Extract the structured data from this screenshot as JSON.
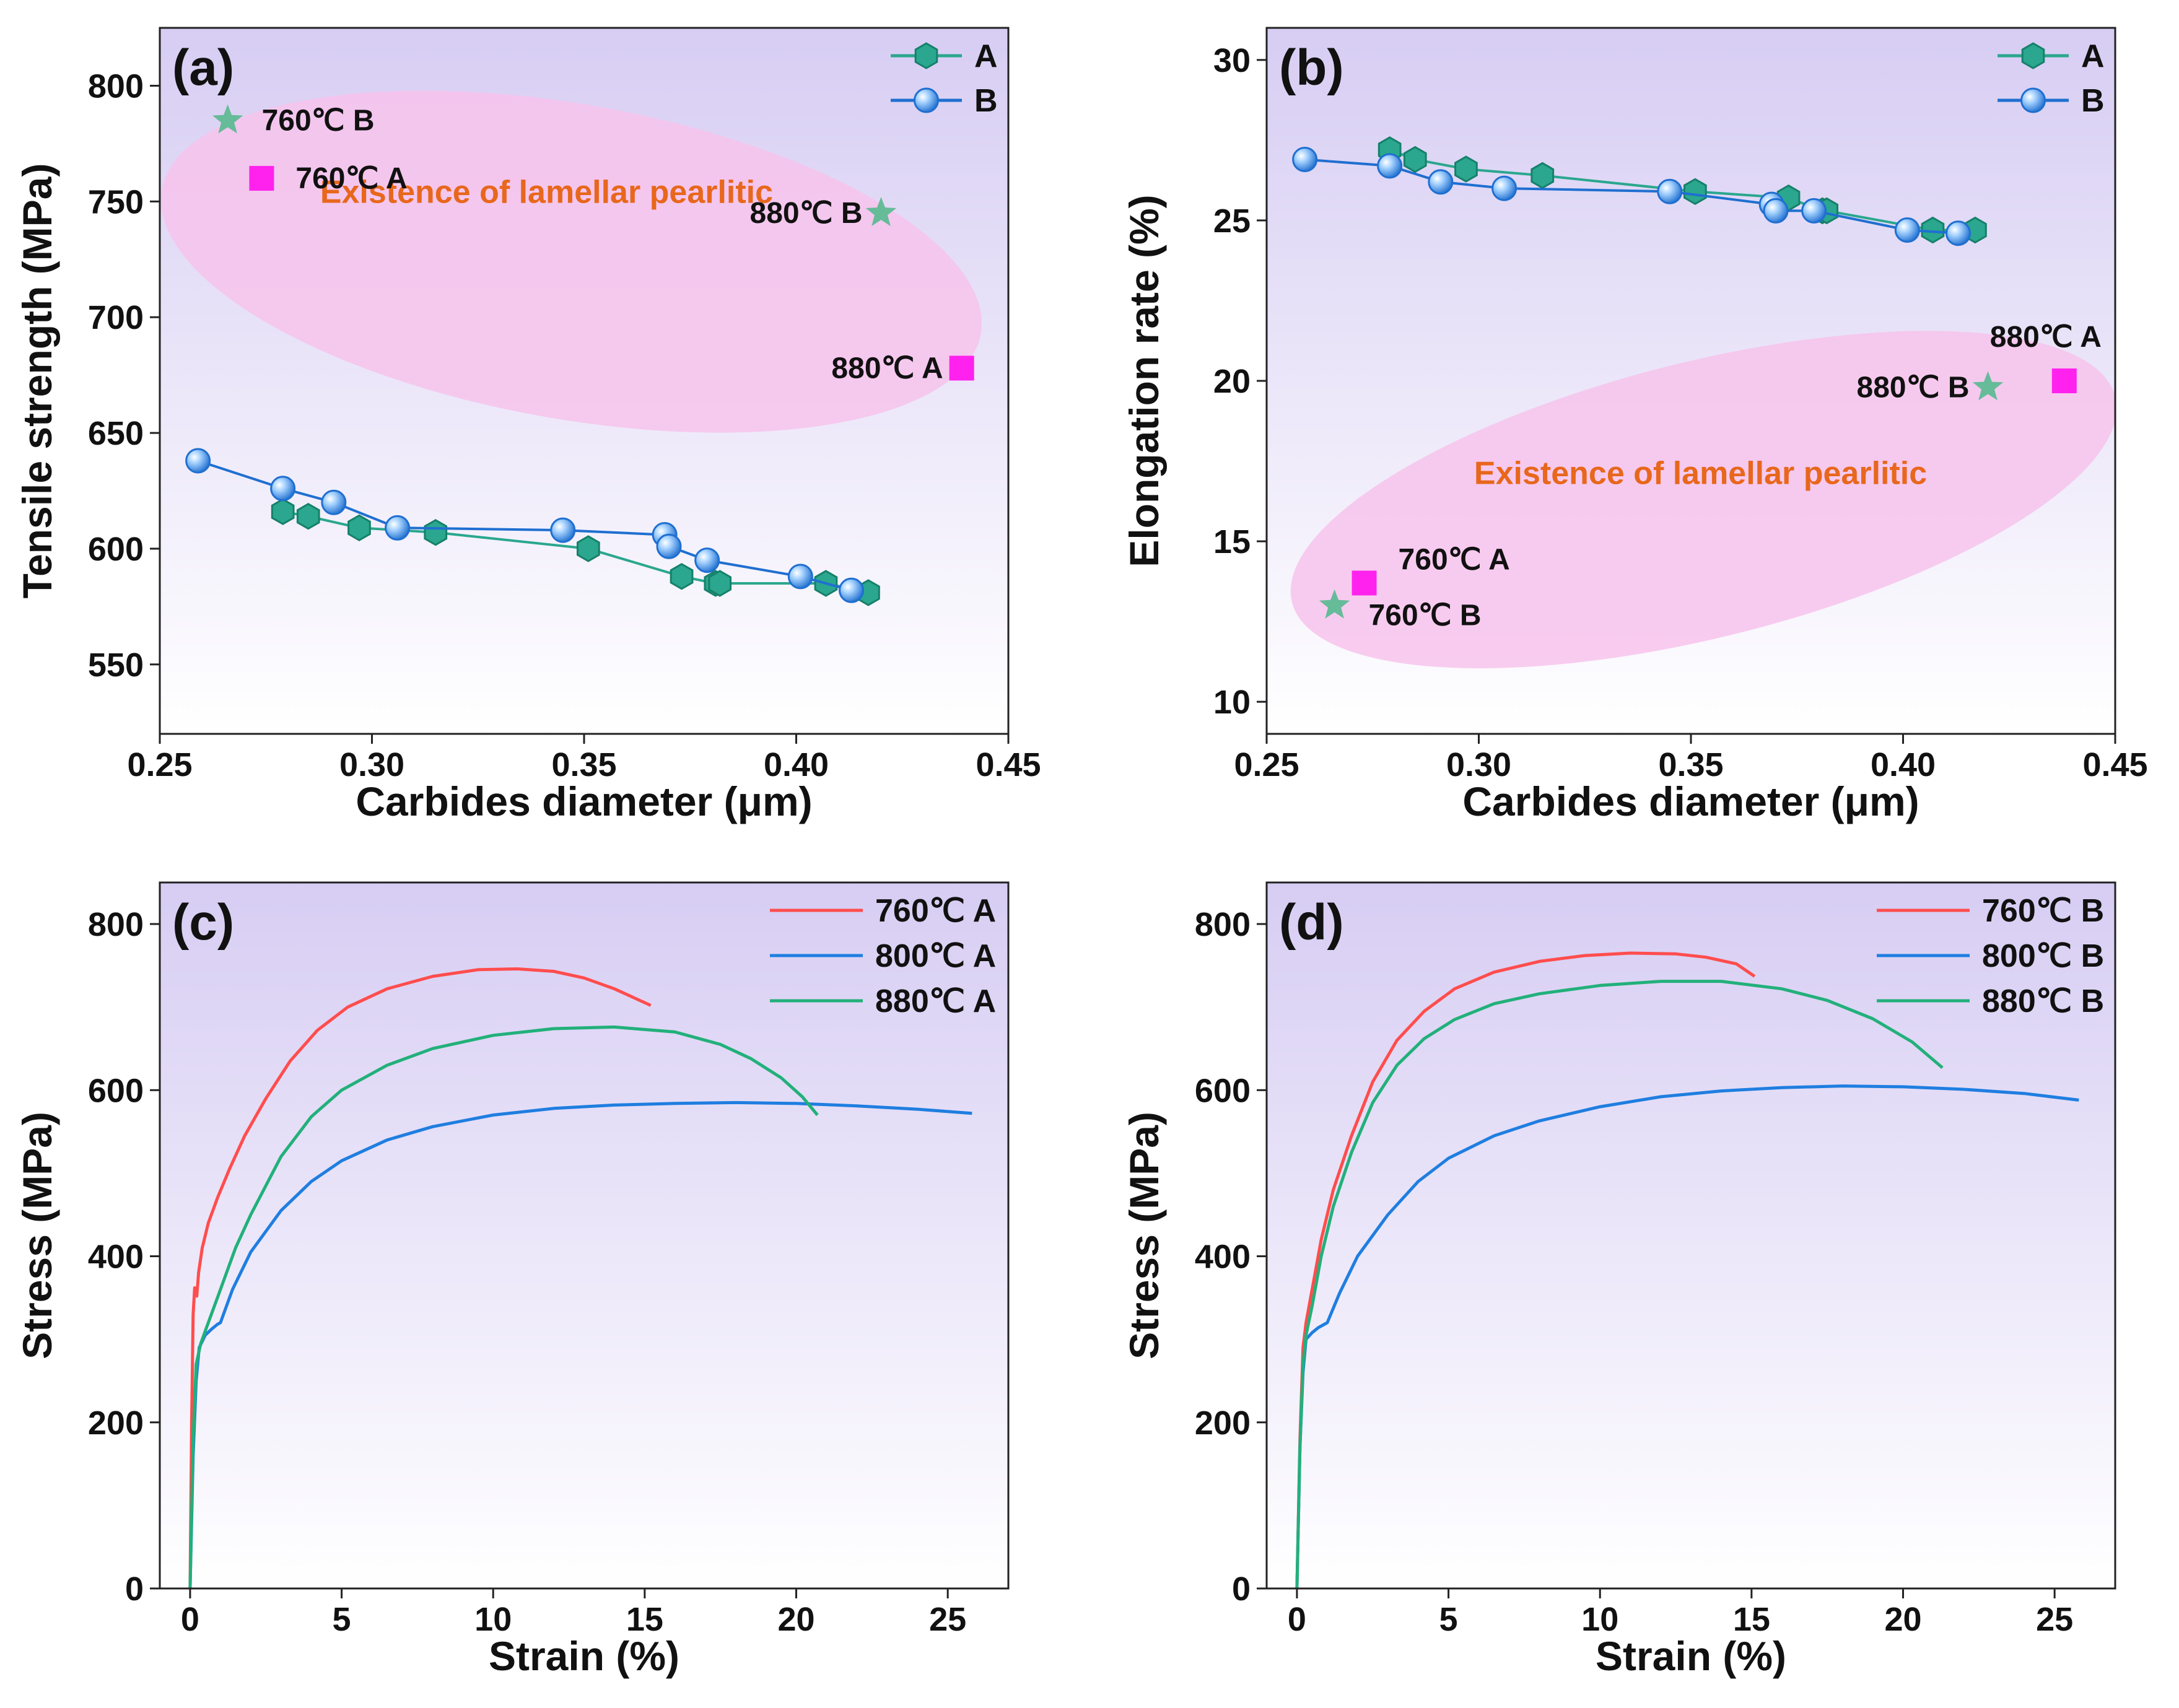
{
  "figure": {
    "palette": {
      "seriesA": "#2aa78e",
      "seriesA_edge": "#16806a",
      "seriesB": "#1f6fd0",
      "seriesB_light": "#a9d4ff",
      "star": "#66bb99",
      "square": "#ff22ee",
      "region_fill": "#f7c3ec",
      "region_text": "#e8671c",
      "curve760": "#ff4d4d",
      "curve800": "#1f7ee0",
      "curve880": "#22b07a",
      "bg_top": "#d7cdf3",
      "bg_bottom": "#ffffff",
      "axis": "#222222"
    }
  },
  "chart_data": [
    {
      "id": "a",
      "panel_label": "(a)",
      "type": "line",
      "xlabel": "Carbides diameter (μm)",
      "ylabel": "Tensile strength (MPa)",
      "xlim": [
        0.25,
        0.45
      ],
      "ylim": [
        520,
        825
      ],
      "xticks": [
        0.25,
        0.3,
        0.35,
        0.4,
        0.45
      ],
      "xtick_labels": [
        "0.25",
        "0.30",
        "0.35",
        "0.40",
        "0.45"
      ],
      "yticks": [
        550,
        600,
        650,
        700,
        750,
        800
      ],
      "ytick_labels": [
        "550",
        "600",
        "650",
        "700",
        "750",
        "800"
      ],
      "legend_position": "top-right",
      "series": [
        {
          "name": "A",
          "marker": "hexagon",
          "x": [
            0.279,
            0.285,
            0.297,
            0.315,
            0.351,
            0.373,
            0.381,
            0.382,
            0.407,
            0.417
          ],
          "y": [
            616,
            614,
            609,
            607,
            600,
            588,
            585,
            585,
            585,
            581
          ]
        },
        {
          "name": "B",
          "marker": "sphere",
          "x": [
            0.259,
            0.279,
            0.291,
            0.306,
            0.345,
            0.369,
            0.37,
            0.379,
            0.401,
            0.413
          ],
          "y": [
            638,
            626,
            620,
            609,
            608,
            606,
            601,
            595,
            588,
            582
          ]
        }
      ],
      "points": [
        {
          "label": "760℃ B",
          "x": 0.266,
          "y": 785,
          "marker": "star",
          "label_side": "right"
        },
        {
          "label": "760℃ A",
          "x": 0.274,
          "y": 760,
          "marker": "square",
          "label_side": "right"
        },
        {
          "label": "880℃ B",
          "x": 0.42,
          "y": 745,
          "marker": "star",
          "label_side": "left"
        },
        {
          "label": "880℃ A",
          "x": 0.439,
          "y": 678,
          "marker": "square",
          "label_side": "left"
        }
      ],
      "region": {
        "text": "Existence of lamellar pearlitic",
        "center": [
          0.347,
          724
        ],
        "rx": 0.098,
        "ry": 68,
        "rotate": 10
      }
    },
    {
      "id": "b",
      "panel_label": "(b)",
      "type": "line",
      "xlabel": "Carbides diameter (μm)",
      "ylabel": "Elongation rate (%)",
      "xlim": [
        0.25,
        0.45
      ],
      "ylim": [
        9,
        31
      ],
      "xticks": [
        0.25,
        0.3,
        0.35,
        0.4,
        0.45
      ],
      "xtick_labels": [
        "0.25",
        "0.30",
        "0.35",
        "0.40",
        "0.45"
      ],
      "yticks": [
        10,
        15,
        20,
        25,
        30
      ],
      "ytick_labels": [
        "10",
        "15",
        "20",
        "25",
        "30"
      ],
      "legend_position": "top-right",
      "series": [
        {
          "name": "A",
          "marker": "hexagon",
          "x": [
            0.279,
            0.285,
            0.297,
            0.315,
            0.351,
            0.373,
            0.381,
            0.382,
            0.407,
            0.417
          ],
          "y": [
            27.2,
            26.9,
            26.6,
            26.4,
            25.9,
            25.7,
            25.3,
            25.3,
            24.7,
            24.7
          ]
        },
        {
          "name": "B",
          "marker": "sphere",
          "x": [
            0.259,
            0.279,
            0.291,
            0.306,
            0.345,
            0.369,
            0.37,
            0.379,
            0.401,
            0.413
          ],
          "y": [
            26.9,
            26.7,
            26.2,
            26.0,
            25.9,
            25.5,
            25.3,
            25.3,
            24.7,
            24.6
          ]
        }
      ],
      "points": [
        {
          "label": "880℃ A",
          "x": 0.438,
          "y": 20.0,
          "marker": "square",
          "label_side": "above"
        },
        {
          "label": "880℃ B",
          "x": 0.42,
          "y": 19.8,
          "marker": "star",
          "label_side": "left"
        },
        {
          "label": "760℃ A",
          "x": 0.273,
          "y": 13.7,
          "marker": "square",
          "label_side": "right-up"
        },
        {
          "label": "760℃ B",
          "x": 0.266,
          "y": 13.0,
          "marker": "star",
          "label_side": "right-down"
        }
      ],
      "region": {
        "text": "Existence of lamellar pearlitic",
        "center": [
          0.353,
          16.3
        ],
        "rx": 0.1,
        "ry": 4.3,
        "rotate": -14
      }
    },
    {
      "id": "c",
      "panel_label": "(c)",
      "type": "line",
      "xlabel": "Strain (%)",
      "ylabel": "Stress (MPa)",
      "xlim": [
        -1.0,
        27.0
      ],
      "ylim": [
        0,
        850
      ],
      "xticks": [
        0,
        5,
        10,
        15,
        20,
        25
      ],
      "xtick_labels": [
        "0",
        "5",
        "10",
        "15",
        "20",
        "25"
      ],
      "yticks": [
        0,
        200,
        400,
        600,
        800
      ],
      "ytick_labels": [
        "0",
        "200",
        "400",
        "600",
        "800"
      ],
      "legend_position": "top-right",
      "series": [
        {
          "name": "760℃ A",
          "curve": "760",
          "x": [
            0,
            0.05,
            0.1,
            0.15,
            0.22,
            0.28,
            0.4,
            0.6,
            0.9,
            1.3,
            1.8,
            2.5,
            3.3,
            4.2,
            5.2,
            6.5,
            8.0,
            9.5,
            10.8,
            12.0,
            13.0,
            14.0,
            14.6,
            15.2
          ],
          "y": [
            0,
            200,
            330,
            362,
            352,
            380,
            410,
            440,
            470,
            505,
            545,
            590,
            635,
            672,
            700,
            722,
            737,
            745,
            746,
            743,
            735,
            722,
            712,
            702
          ]
        },
        {
          "name": "800℃ A",
          "curve": "800",
          "x": [
            0,
            0.1,
            0.2,
            0.3,
            0.5,
            0.7,
            0.9,
            1.0,
            1.4,
            2.0,
            3.0,
            4.0,
            5.0,
            6.5,
            8.0,
            10.0,
            12.0,
            14.0,
            16.0,
            18.0,
            20.0,
            22.0,
            24.0,
            25.8
          ],
          "y": [
            0,
            160,
            250,
            290,
            305,
            312,
            318,
            320,
            360,
            405,
            455,
            490,
            515,
            540,
            556,
            570,
            578,
            582,
            584,
            585,
            584,
            581,
            577,
            572
          ]
        },
        {
          "name": "880℃ A",
          "curve": "880",
          "x": [
            0,
            0.1,
            0.2,
            0.35,
            0.5,
            0.7,
            1.0,
            1.5,
            2.0,
            3.0,
            4.0,
            5.0,
            6.5,
            8.0,
            10.0,
            12.0,
            14.0,
            16.0,
            17.5,
            18.5,
            19.5,
            20.2,
            20.7
          ],
          "y": [
            0,
            180,
            270,
            295,
            310,
            330,
            360,
            410,
            450,
            520,
            568,
            600,
            630,
            650,
            666,
            674,
            676,
            670,
            655,
            638,
            615,
            592,
            570
          ]
        }
      ]
    },
    {
      "id": "d",
      "panel_label": "(d)",
      "type": "line",
      "xlabel": "Strain (%)",
      "ylabel": "Stress (MPa)",
      "xlim": [
        -1.0,
        27.0
      ],
      "ylim": [
        0,
        850
      ],
      "xticks": [
        0,
        5,
        10,
        15,
        20,
        25
      ],
      "xtick_labels": [
        "0",
        "5",
        "10",
        "15",
        "20",
        "25"
      ],
      "yticks": [
        0,
        200,
        400,
        600,
        800
      ],
      "ytick_labels": [
        "0",
        "200",
        "400",
        "600",
        "800"
      ],
      "legend_position": "top-right",
      "series": [
        {
          "name": "760℃ B",
          "curve": "760",
          "x": [
            0,
            0.1,
            0.2,
            0.3,
            0.5,
            0.8,
            1.2,
            1.8,
            2.5,
            3.3,
            4.2,
            5.2,
            6.5,
            8.0,
            9.5,
            11.0,
            12.5,
            13.5,
            14.5,
            15.1
          ],
          "y": [
            0,
            180,
            290,
            320,
            360,
            420,
            480,
            545,
            610,
            660,
            695,
            722,
            742,
            755,
            762,
            765,
            764,
            760,
            752,
            737
          ]
        },
        {
          "name": "800℃ B",
          "curve": "800",
          "x": [
            0,
            0.1,
            0.2,
            0.3,
            0.5,
            0.7,
            0.9,
            1.0,
            1.4,
            2.0,
            3.0,
            4.0,
            5.0,
            6.5,
            8.0,
            10.0,
            12.0,
            14.0,
            16.0,
            18.0,
            20.0,
            22.0,
            24.0,
            25.8
          ],
          "y": [
            0,
            170,
            260,
            300,
            308,
            314,
            318,
            320,
            355,
            400,
            450,
            490,
            518,
            545,
            563,
            580,
            592,
            599,
            603,
            605,
            604,
            601,
            596,
            588
          ]
        },
        {
          "name": "880℃ B",
          "curve": "880",
          "x": [
            0,
            0.1,
            0.2,
            0.3,
            0.5,
            0.8,
            1.2,
            1.8,
            2.5,
            3.3,
            4.2,
            5.2,
            6.5,
            8.0,
            10.0,
            12.0,
            14.0,
            16.0,
            17.5,
            19.0,
            20.3,
            21.3
          ],
          "y": [
            0,
            170,
            270,
            305,
            340,
            400,
            460,
            525,
            585,
            630,
            662,
            685,
            704,
            716,
            726,
            731,
            731,
            722,
            708,
            686,
            658,
            627
          ]
        }
      ]
    }
  ]
}
